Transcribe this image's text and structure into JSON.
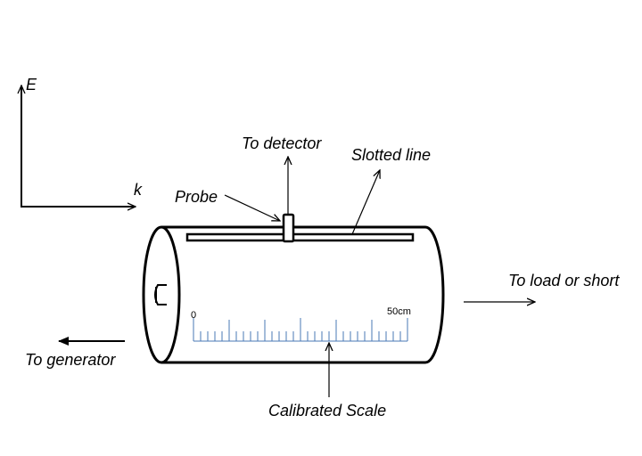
{
  "labels": {
    "e_axis": "E",
    "k_axis": "k",
    "to_detector": "To detector",
    "slotted_line": "Slotted line",
    "probe": "Probe",
    "to_load": "To load or short",
    "to_generator": "To generator",
    "calibrated_scale": "Calibrated Scale"
  },
  "scale": {
    "start_label": "0",
    "end_label": "50cm",
    "tick_color": "#4a7ab5"
  },
  "colors": {
    "ink": "#000000"
  }
}
